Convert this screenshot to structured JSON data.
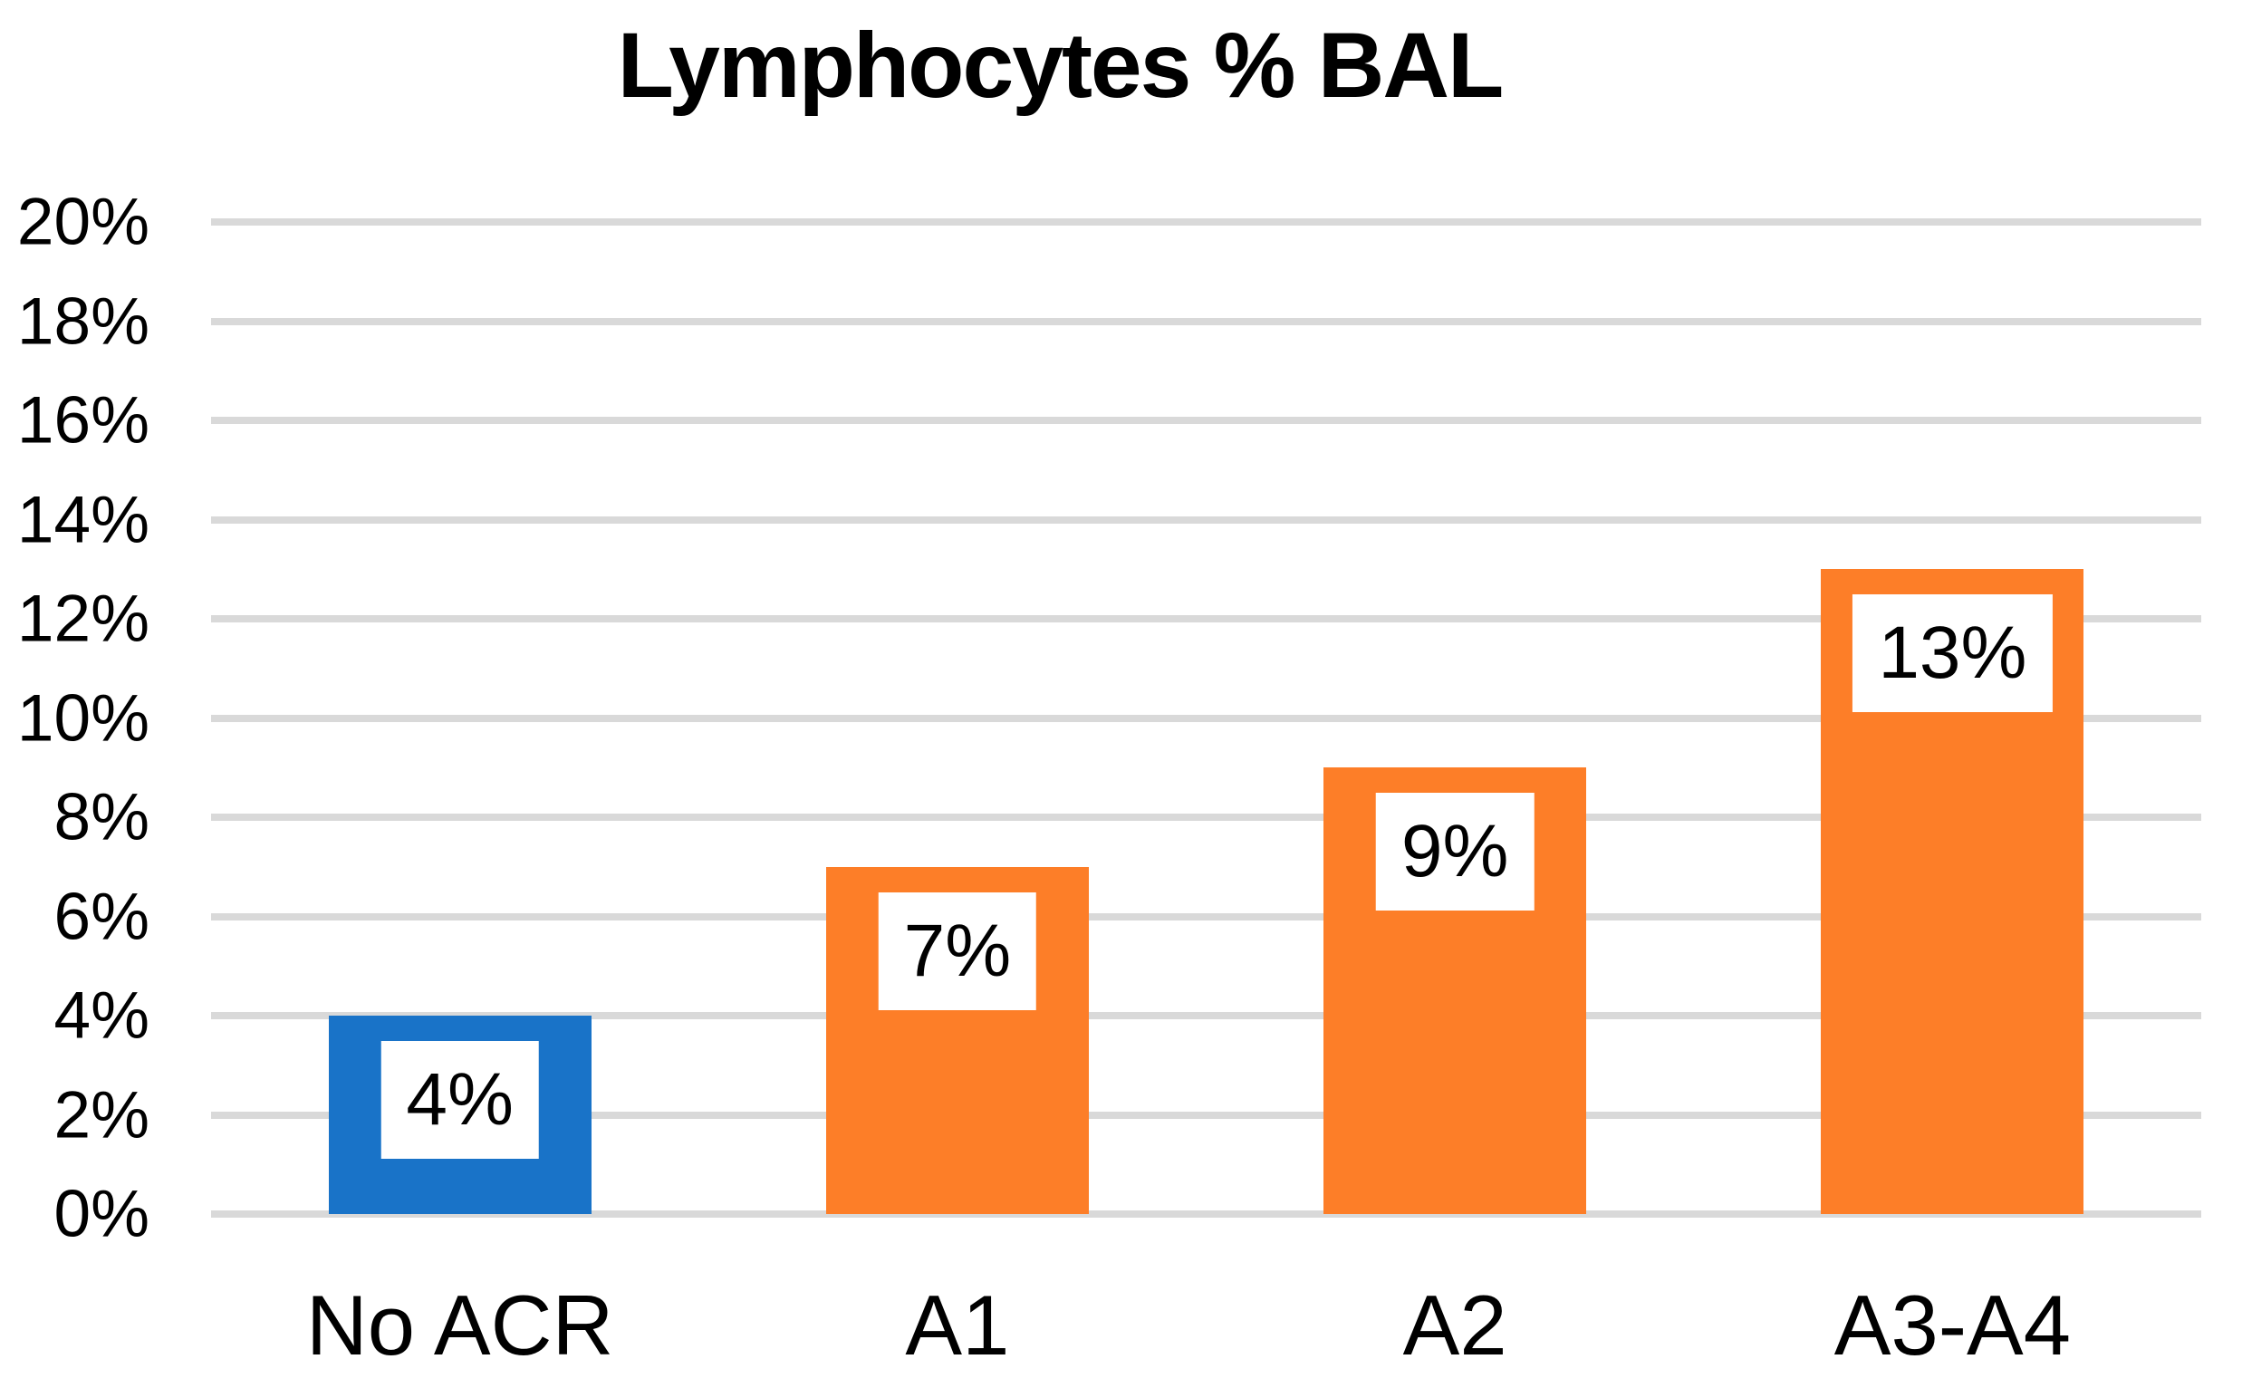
{
  "chart_data": {
    "type": "bar",
    "title": "Lymphocytes % BAL",
    "categories": [
      "No ACR",
      "A1",
      "A2",
      "A3-A4"
    ],
    "values": [
      4,
      7,
      9,
      13
    ],
    "value_labels": [
      "4%",
      "7%",
      "9%",
      "13%"
    ],
    "bar_colors": [
      "#1973C8",
      "#FD7E28",
      "#FD7E28",
      "#FD7E28"
    ],
    "xlabel": "",
    "ylabel": "",
    "ylim": [
      0,
      20
    ],
    "ytick_step": 2,
    "ytick_labels": [
      "0%",
      "2%",
      "4%",
      "6%",
      "8%",
      "10%",
      "12%",
      "14%",
      "16%",
      "18%",
      "20%"
    ],
    "grid": true,
    "legend": false,
    "colors": {
      "gridline": "#D9D9D9",
      "background": "#FFFFFF",
      "title_text": "#000000",
      "axis_text": "#000000",
      "value_label_background": "#FFFFFF",
      "value_label_text": "#000000"
    }
  }
}
